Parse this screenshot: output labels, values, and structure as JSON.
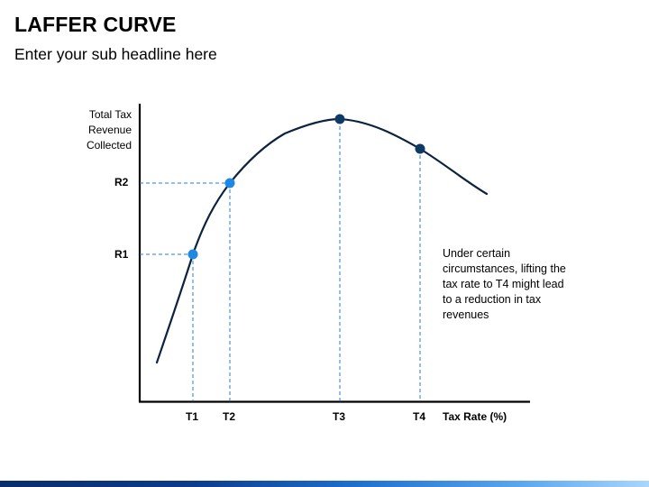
{
  "header": {
    "title": "LAFFER CURVE",
    "subtitle": "Enter your sub headline here"
  },
  "colors": {
    "curve": "#0c2340",
    "dark_point": "#0f3a66",
    "light_point": "#1e88e5",
    "guide": "#2b7bd6",
    "axis": "#000000"
  },
  "chart_data": {
    "type": "line",
    "ylabel": "Total Tax Revenue Collected",
    "xlabel": "Tax Rate (%)",
    "x_ticks": [
      "T1",
      "T2",
      "T3",
      "T4"
    ],
    "y_ticks": [
      "R1",
      "R2"
    ],
    "points": [
      {
        "label": "T1",
        "revenue_label": "R1",
        "tone": "light"
      },
      {
        "label": "T2",
        "revenue_label": "R2",
        "tone": "light"
      },
      {
        "label": "T3",
        "tone": "dark"
      },
      {
        "label": "T4",
        "tone": "dark"
      }
    ],
    "annotation": "Under certain circumstances, lifting the tax rate to T4 might lead to a reduction in tax revenues"
  }
}
